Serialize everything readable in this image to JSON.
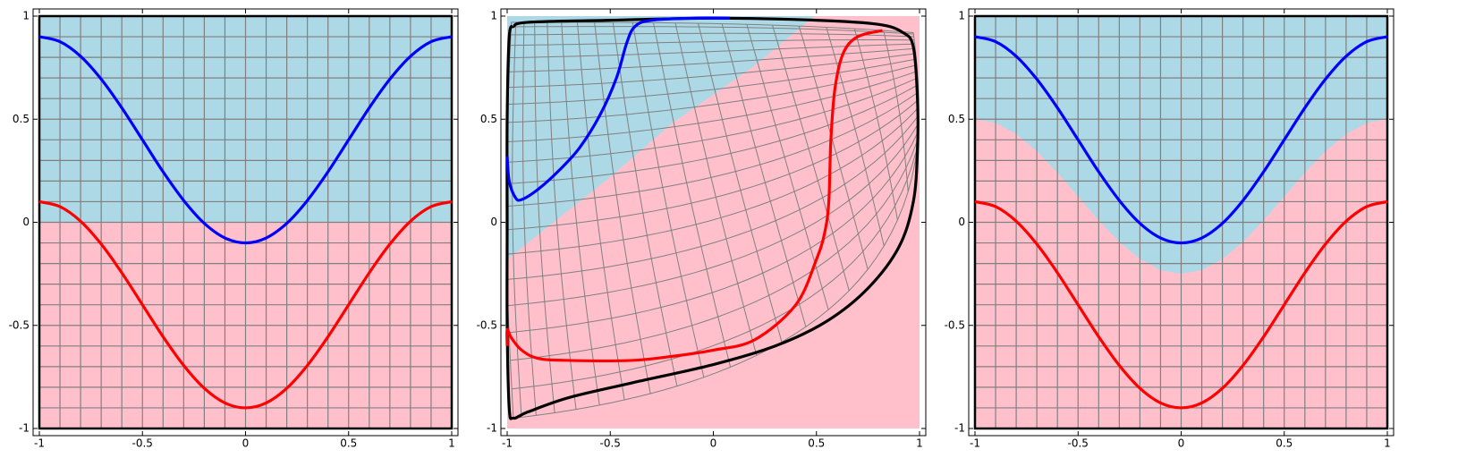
{
  "chart_data": [
    {
      "type": "line",
      "xlim": [
        -1,
        1
      ],
      "ylim": [
        -1,
        1
      ],
      "xticks": [
        -1,
        -0.5,
        0,
        0.5,
        1
      ],
      "yticks": [
        -1,
        -0.5,
        0,
        0.5,
        1
      ],
      "grid": true,
      "grid_step": 0.1,
      "frame": true,
      "fills": [
        {
          "color": "#ffc0cb",
          "x": [
            -1,
            1,
            1,
            -1
          ],
          "values": [
            0,
            0,
            -1,
            -1
          ]
        },
        {
          "color": "#add8e6",
          "x": [
            -1,
            1,
            1,
            -1
          ],
          "values": [
            1,
            1,
            0,
            0
          ]
        }
      ],
      "series": [
        {
          "color": "#0000ff",
          "x": [
            -1,
            -0.9,
            -0.8,
            -0.7,
            -0.6,
            -0.5,
            -0.4,
            -0.3,
            -0.2,
            -0.1,
            0,
            0.1,
            0.2,
            0.3,
            0.4,
            0.5,
            0.6,
            0.7,
            0.8,
            0.9,
            1
          ],
          "values": [
            0.9,
            0.876,
            0.805,
            0.694,
            0.555,
            0.4,
            0.245,
            0.106,
            -0.005,
            -0.076,
            -0.1,
            -0.076,
            -0.005,
            0.106,
            0.245,
            0.4,
            0.555,
            0.694,
            0.805,
            0.876,
            0.9
          ]
        },
        {
          "color": "#ff0000",
          "x": [
            -1,
            -0.9,
            -0.8,
            -0.7,
            -0.6,
            -0.5,
            -0.4,
            -0.3,
            -0.2,
            -0.1,
            0,
            0.1,
            0.2,
            0.3,
            0.4,
            0.5,
            0.6,
            0.7,
            0.8,
            0.9,
            1
          ],
          "values": [
            0.1,
            0.076,
            0.005,
            -0.106,
            -0.245,
            -0.4,
            -0.555,
            -0.694,
            -0.805,
            -0.876,
            -0.9,
            -0.876,
            -0.805,
            -0.694,
            -0.555,
            -0.4,
            -0.245,
            -0.106,
            0.005,
            0.076,
            0.1
          ]
        }
      ]
    },
    {
      "type": "line",
      "xlim": [
        -1,
        1
      ],
      "ylim": [
        -1,
        1
      ],
      "xticks": [
        -1,
        -0.5,
        0,
        0.5,
        1
      ],
      "yticks": [
        -1,
        -0.5,
        0,
        0.5,
        1
      ],
      "mesh": true,
      "grid_step": 0.1,
      "fills": [
        {
          "color": "#ffc0cb",
          "x": [
            -1,
            1,
            1,
            -1
          ],
          "values": [
            1,
            1,
            -1,
            -1
          ]
        },
        {
          "color": "#add8e6",
          "x": [
            -1,
            -0.5,
            -0.2,
            0.2,
            0.49,
            -1
          ],
          "values": [
            -0.18,
            0.22,
            0.48,
            0.76,
            1,
            1
          ]
        }
      ],
      "series": [
        {
          "color": "#000000",
          "x": [
            -0.97,
            -0.99,
            -1,
            -1,
            -1,
            -0.99,
            -0.97,
            -0.9,
            -0.7,
            -0.4,
            0,
            0.3,
            0.55,
            0.75,
            0.9,
            0.97,
            0.99,
            0.99,
            0.97,
            0.92,
            0.8,
            0.5,
            0,
            -0.5,
            -0.9,
            -0.97
          ],
          "values": [
            0.95,
            0.9,
            0.5,
            0,
            -0.5,
            -0.9,
            -0.95,
            -0.92,
            -0.85,
            -0.78,
            -0.69,
            -0.6,
            -0.48,
            -0.32,
            -0.12,
            0.1,
            0.35,
            0.6,
            0.85,
            0.92,
            0.96,
            0.98,
            0.99,
            0.98,
            0.97,
            0.95
          ]
        },
        {
          "color": "#0000ff",
          "x": [
            -1,
            -0.99,
            -0.96,
            -0.93,
            -0.85,
            -0.75,
            -0.65,
            -0.55,
            -0.47,
            -0.42,
            -0.38,
            -0.3,
            -0.1,
            0.08
          ],
          "values": [
            0.32,
            0.2,
            0.12,
            0.11,
            0.16,
            0.25,
            0.36,
            0.52,
            0.7,
            0.87,
            0.95,
            0.98,
            0.99,
            0.99
          ]
        },
        {
          "color": "#ff0000",
          "x": [
            -1,
            -1,
            -0.98,
            -0.93,
            -0.85,
            -0.7,
            -0.4,
            -0.2,
            0,
            0.2,
            0.4,
            0.5,
            0.54,
            0.56,
            0.57,
            0.59,
            0.63,
            0.7,
            0.82
          ],
          "values": [
            -0.6,
            -0.52,
            -0.56,
            -0.62,
            -0.66,
            -0.67,
            -0.67,
            -0.65,
            -0.62,
            -0.57,
            -0.4,
            -0.18,
            -0.05,
            0.1,
            0.4,
            0.65,
            0.82,
            0.9,
            0.93
          ]
        }
      ]
    },
    {
      "type": "line",
      "xlim": [
        -1,
        1
      ],
      "ylim": [
        -1,
        1
      ],
      "xticks": [
        -1,
        -0.5,
        0,
        0.5,
        1
      ],
      "yticks": [
        -1,
        -0.5,
        0,
        0.5,
        1
      ],
      "grid": true,
      "grid_step": 0.1,
      "frame": true,
      "fills": [
        {
          "color": "#ffc0cb",
          "x": [
            -1,
            1,
            1,
            -1
          ],
          "values": [
            1,
            1,
            -1,
            -1
          ]
        },
        {
          "color": "#add8e6",
          "x": [
            -1,
            -0.9,
            -0.8,
            -0.7,
            -0.6,
            -0.5,
            -0.4,
            -0.3,
            -0.2,
            -0.1,
            0,
            0.1,
            0.2,
            0.3,
            0.4,
            0.5,
            0.6,
            0.7,
            0.8,
            0.9,
            1,
            1,
            -1
          ],
          "values": [
            0.5,
            0.482,
            0.428,
            0.345,
            0.241,
            0.125,
            0.009,
            -0.095,
            -0.178,
            -0.232,
            -0.25,
            -0.232,
            -0.178,
            -0.095,
            0.009,
            0.125,
            0.241,
            0.345,
            0.428,
            0.482,
            0.5,
            1,
            1
          ]
        }
      ],
      "series": [
        {
          "color": "#0000ff",
          "x": [
            -1,
            -0.9,
            -0.8,
            -0.7,
            -0.6,
            -0.5,
            -0.4,
            -0.3,
            -0.2,
            -0.1,
            0,
            0.1,
            0.2,
            0.3,
            0.4,
            0.5,
            0.6,
            0.7,
            0.8,
            0.9,
            1
          ],
          "values": [
            0.9,
            0.876,
            0.805,
            0.694,
            0.555,
            0.4,
            0.245,
            0.106,
            -0.005,
            -0.076,
            -0.1,
            -0.076,
            -0.005,
            0.106,
            0.245,
            0.4,
            0.555,
            0.694,
            0.805,
            0.876,
            0.9
          ]
        },
        {
          "color": "#ff0000",
          "x": [
            -1,
            -0.9,
            -0.8,
            -0.7,
            -0.6,
            -0.5,
            -0.4,
            -0.3,
            -0.2,
            -0.1,
            0,
            0.1,
            0.2,
            0.3,
            0.4,
            0.5,
            0.6,
            0.7,
            0.8,
            0.9,
            1
          ],
          "values": [
            0.1,
            0.076,
            0.005,
            -0.106,
            -0.245,
            -0.4,
            -0.555,
            -0.694,
            -0.805,
            -0.876,
            -0.9,
            -0.876,
            -0.805,
            -0.694,
            -0.555,
            -0.4,
            -0.245,
            -0.106,
            0.005,
            0.076,
            0.1
          ]
        }
      ]
    }
  ]
}
